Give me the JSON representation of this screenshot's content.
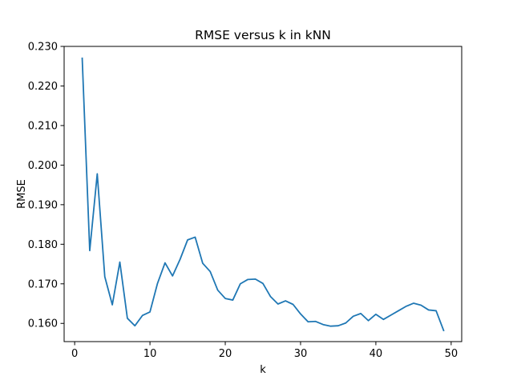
{
  "chart_data": {
    "type": "line",
    "title": "RMSE versus k in kNN",
    "xlabel": "k",
    "ylabel": "RMSE",
    "xlim": [
      -1.4,
      51.4
    ],
    "ylim": [
      0.1554,
      0.23
    ],
    "xticks": [
      0,
      10,
      20,
      30,
      40,
      50
    ],
    "xtick_labels": [
      "0",
      "10",
      "20",
      "30",
      "40",
      "50"
    ],
    "yticks": [
      0.16,
      0.17,
      0.18,
      0.19,
      0.2,
      0.21,
      0.22,
      0.23
    ],
    "ytick_labels": [
      "0.160",
      "0.170",
      "0.180",
      "0.190",
      "0.200",
      "0.210",
      "0.220",
      "0.230"
    ],
    "grid": false,
    "series": [
      {
        "name": "RMSE",
        "color": "#1f77b4",
        "x": [
          1,
          2,
          3,
          4,
          5,
          6,
          7,
          8,
          9,
          10,
          11,
          12,
          13,
          14,
          15,
          16,
          17,
          18,
          19,
          20,
          21,
          22,
          23,
          24,
          25,
          26,
          27,
          28,
          29,
          30,
          31,
          32,
          33,
          34,
          35,
          36,
          37,
          38,
          39,
          40,
          41,
          42,
          43,
          44,
          45,
          46,
          47,
          48,
          49
        ],
        "values": [
          0.227,
          0.1784,
          0.1978,
          0.1718,
          0.1647,
          0.1755,
          0.1613,
          0.1594,
          0.162,
          0.1629,
          0.1701,
          0.1753,
          0.172,
          0.1762,
          0.1811,
          0.1818,
          0.1752,
          0.1731,
          0.1684,
          0.1663,
          0.1659,
          0.17,
          0.1711,
          0.1712,
          0.1701,
          0.1668,
          0.1649,
          0.1657,
          0.1648,
          0.1624,
          0.1604,
          0.1605,
          0.1597,
          0.1593,
          0.1594,
          0.1601,
          0.1618,
          0.1625,
          0.1607,
          0.1623,
          0.161,
          0.1621,
          0.1632,
          0.1643,
          0.1651,
          0.1646,
          0.1634,
          0.1632,
          0.1582
        ]
      }
    ]
  }
}
